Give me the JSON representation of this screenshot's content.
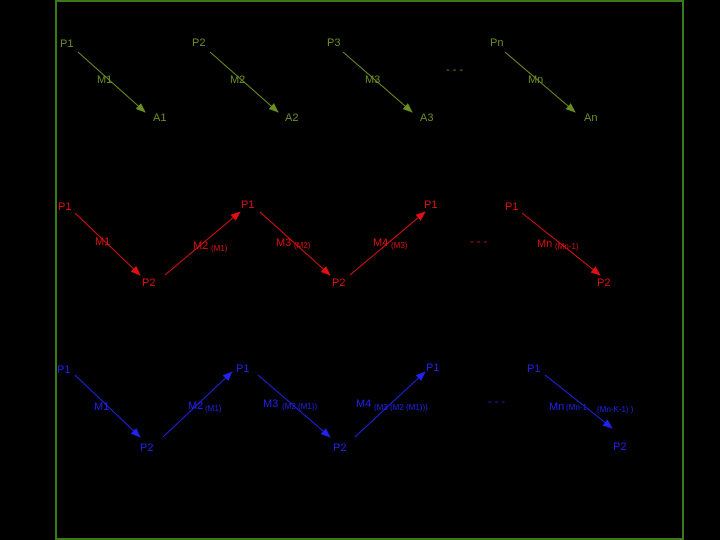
{
  "rows": [
    {
      "labels": [
        "P1",
        "P2",
        "P3",
        "Pn",
        "M1",
        "M2",
        "M3",
        "Mn",
        "A1",
        "A2",
        "A3",
        "An",
        "- - -"
      ]
    },
    {
      "labels": [
        "P1",
        "M1",
        "P2",
        "M2",
        "(M1)",
        "P1",
        "M3",
        "(M2)",
        "P2",
        "M4",
        "(M3)",
        "P1",
        "- - -",
        "P1",
        "Mn",
        "(Mn-1)",
        "P2"
      ]
    },
    {
      "labels": [
        "P1",
        "M1",
        "P2",
        "M2",
        "(M1)",
        "P1",
        "M3",
        "(M2 (M1))",
        "P2",
        "M4",
        "(M3 (M2 (M1)))",
        "P1",
        "- - -",
        "P1",
        "Mn",
        "(Mn-1",
        "(Mn-K-1) )",
        "P2"
      ]
    }
  ]
}
